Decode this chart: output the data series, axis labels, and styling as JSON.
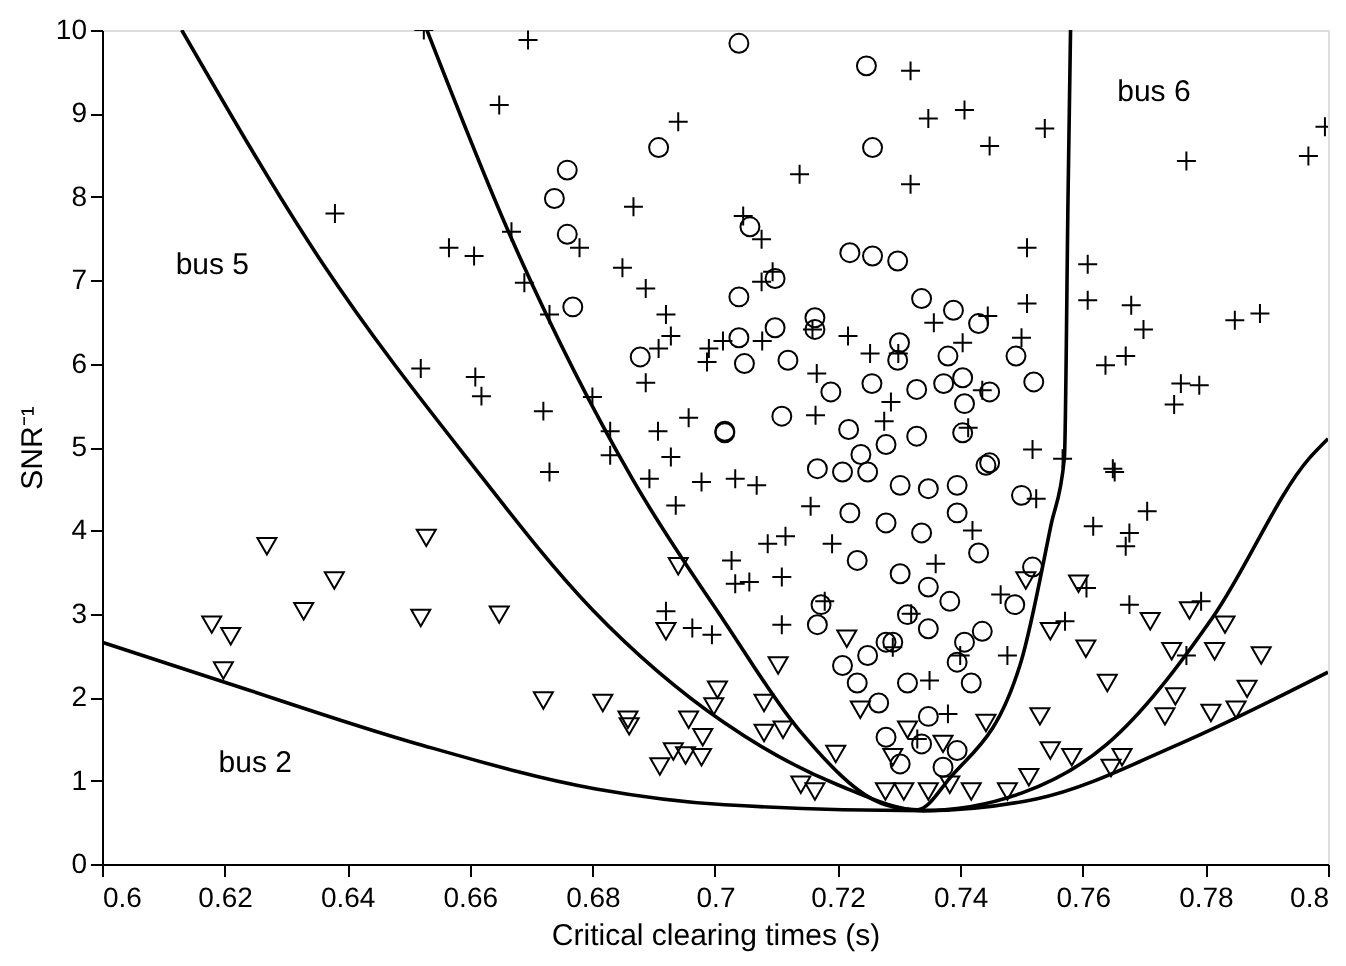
{
  "chart_data": {
    "type": "scatter",
    "xlabel": "Critical clearing times (s)",
    "ylabel": "SNR⁻¹",
    "xlim": [
      0.6,
      0.8
    ],
    "ylim": [
      0,
      10
    ],
    "xticks": [
      0.6,
      0.62,
      0.64,
      0.66,
      0.68,
      0.7,
      0.72,
      0.74,
      0.76,
      0.78,
      0.8
    ],
    "yticks": [
      0,
      1,
      2,
      3,
      4,
      5,
      6,
      7,
      8,
      9,
      10
    ],
    "grid": false,
    "annotations": [
      "bus 2",
      "bus 5",
      "bus 6"
    ],
    "series": [
      {
        "marker": "circle",
        "color": "#000000",
        "x": [
          0.6759,
          0.6738,
          0.6759,
          0.6768,
          0.6908,
          0.6878,
          0.7016,
          0.7039,
          0.7247,
          0.7257,
          0.7057,
          0.722,
          0.7257,
          0.7298,
          0.7098,
          0.7039,
          0.7337,
          0.7389,
          0.743,
          0.7163,
          0.7098,
          0.7039,
          0.7048,
          0.7119,
          0.7163,
          0.7301,
          0.7298,
          0.738,
          0.7404,
          0.7491,
          0.752,
          0.7189,
          0.7256,
          0.7329,
          0.7448,
          0.7373,
          0.7407,
          0.7016,
          0.7109,
          0.7218,
          0.7279,
          0.7404,
          0.7329,
          0.7448,
          0.7238,
          0.7167,
          0.7208,
          0.7249,
          0.7302,
          0.7348,
          0.7395,
          0.7442,
          0.75,
          0.722,
          0.7279,
          0.7337,
          0.7395,
          0.743,
          0.7348,
          0.7232,
          0.7302,
          0.7518,
          0.7489,
          0.7173,
          0.7167,
          0.7208,
          0.7249,
          0.729,
          0.7348,
          0.7395,
          0.7418,
          0.7314,
          0.7267,
          0.7348,
          0.7279,
          0.7337,
          0.7395,
          0.7302,
          0.7372,
          0.7279,
          0.7314,
          0.7383,
          0.7436,
          0.7232,
          0.7407
        ],
        "values": [
          8.32,
          7.98,
          7.55,
          6.68,
          8.59,
          6.08,
          5.19,
          9.84,
          9.57,
          8.59,
          7.64,
          7.33,
          7.29,
          7.23,
          7.02,
          6.8,
          6.78,
          6.64,
          6.48,
          6.55,
          6.43,
          6.31,
          6.0,
          6.04,
          6.41,
          6.25,
          6.04,
          6.09,
          5.83,
          6.09,
          5.78,
          5.66,
          5.76,
          5.69,
          5.66,
          5.76,
          5.52,
          5.17,
          5.37,
          5.21,
          5.03,
          5.17,
          5.13,
          4.81,
          4.91,
          4.74,
          4.7,
          4.7,
          4.54,
          4.5,
          4.54,
          4.78,
          4.42,
          4.21,
          4.09,
          3.97,
          4.21,
          3.73,
          3.32,
          3.64,
          3.48,
          3.56,
          3.11,
          3.11,
          2.87,
          2.38,
          2.5,
          2.66,
          2.82,
          2.42,
          2.17,
          2.17,
          1.93,
          1.77,
          1.52,
          1.44,
          1.36,
          1.2,
          1.16,
          2.66,
          2.99,
          3.15,
          2.79,
          2.17,
          2.66
        ]
      },
      {
        "marker": "cross",
        "color": "#000000",
        "x": [
          0.6525,
          0.6695,
          0.6648,
          0.694,
          0.638,
          0.6566,
          0.6607,
          0.6668,
          0.6689,
          0.673,
          0.6779,
          0.6867,
          0.6849,
          0.6887,
          0.692,
          0.6928,
          0.652,
          0.6609,
          0.6619,
          0.672,
          0.68,
          0.6829,
          0.6829,
          0.6907,
          0.6928,
          0.6887,
          0.6908,
          0.6957,
          0.699,
          0.6987,
          0.673,
          0.7319,
          0.7348,
          0.7407,
          0.7538,
          0.7448,
          0.7138,
          0.7319,
          0.7995,
          0.7968,
          0.7769,
          0.7046,
          0.7076,
          0.7094,
          0.7076,
          0.7509,
          0.7509,
          0.7608,
          0.7608,
          0.7679,
          0.7699,
          0.7848,
          0.7889,
          0.7637,
          0.767,
          0.776,
          0.779,
          0.7749,
          0.7013,
          0.7077,
          0.7159,
          0.7217,
          0.7357,
          0.7404,
          0.7445,
          0.7253,
          0.7299,
          0.75,
          0.7166,
          0.7164,
          0.7287,
          0.7276,
          0.7413,
          0.7436,
          0.7518,
          0.7567,
          0.7649,
          0.7033,
          0.7068,
          0.7156,
          0.7191,
          0.7086,
          0.7115,
          0.7027,
          0.7033,
          0.7056,
          0.7109,
          0.7109,
          0.7179,
          0.7652,
          0.7524,
          0.7617,
          0.7676,
          0.7705,
          0.767,
          0.7606,
          0.7676,
          0.7793,
          0.7769,
          0.7477,
          0.7571,
          0.7466,
          0.6893,
          0.6936,
          0.6978,
          0.692,
          0.6963,
          0.6995,
          0.732,
          0.735,
          0.738,
          0.733,
          0.74,
          0.736,
          0.742,
          0.729
        ],
        "values": [
          10.0,
          9.88,
          9.1,
          8.9,
          7.8,
          7.39,
          7.29,
          7.58,
          6.97,
          6.59,
          7.39,
          7.88,
          7.15,
          6.9,
          6.59,
          6.33,
          5.94,
          5.84,
          5.61,
          5.43,
          5.6,
          5.19,
          4.9,
          5.19,
          4.88,
          5.77,
          6.18,
          5.35,
          6.18,
          6.02,
          4.7,
          9.51,
          8.94,
          9.04,
          8.82,
          8.61,
          8.27,
          8.15,
          8.84,
          8.49,
          8.43,
          7.77,
          7.49,
          7.1,
          6.98,
          7.39,
          6.72,
          7.19,
          6.76,
          6.7,
          6.41,
          6.52,
          6.6,
          5.98,
          6.09,
          5.76,
          5.74,
          5.51,
          6.27,
          6.27,
          6.41,
          6.33,
          6.49,
          6.25,
          6.57,
          6.12,
          6.12,
          6.31,
          5.88,
          5.38,
          5.54,
          5.31,
          5.23,
          5.68,
          4.97,
          4.86,
          4.74,
          4.62,
          4.54,
          4.29,
          3.84,
          3.84,
          3.93,
          3.64,
          3.36,
          3.38,
          3.44,
          2.87,
          3.15,
          4.7,
          4.38,
          4.05,
          3.97,
          4.23,
          3.81,
          3.31,
          3.11,
          3.15,
          2.5,
          2.5,
          2.91,
          3.23,
          4.62,
          4.3,
          4.58,
          3.03,
          2.83,
          2.75,
          3.0,
          2.2,
          1.8,
          1.5,
          2.5,
          3.6,
          4.0,
          2.6
        ]
      },
      {
        "marker": "triangle",
        "color": "#000000",
        "x": [
          0.6179,
          0.621,
          0.6198,
          0.6269,
          0.6329,
          0.6379,
          0.6529,
          0.652,
          0.6648,
          0.672,
          0.6817,
          0.6858,
          0.686,
          0.692,
          0.694,
          0.691,
          0.6932,
          0.6952,
          0.6978,
          0.698,
          0.6957,
          0.6998,
          0.7004,
          0.7103,
          0.708,
          0.7111,
          0.708,
          0.714,
          0.7163,
          0.7197,
          0.7215,
          0.7237,
          0.7278,
          0.7308,
          0.7348,
          0.7383,
          0.7418,
          0.7477,
          0.7512,
          0.7547,
          0.753,
          0.7507,
          0.7547,
          0.7582,
          0.7605,
          0.7593,
          0.764,
          0.7646,
          0.771,
          0.7774,
          0.7745,
          0.7815,
          0.7734,
          0.7751,
          0.7809,
          0.7868,
          0.7832,
          0.7891,
          0.785,
          0.7664,
          0.7372,
          0.7314,
          0.7442,
          0.729
        ],
        "values": [
          2.87,
          2.73,
          2.32,
          3.81,
          3.03,
          3.4,
          3.91,
          2.95,
          2.99,
          1.96,
          1.93,
          1.73,
          1.65,
          2.79,
          3.57,
          1.17,
          1.35,
          1.3,
          1.28,
          1.52,
          1.73,
          1.89,
          2.09,
          2.38,
          1.93,
          1.61,
          1.57,
          0.95,
          0.87,
          1.32,
          2.7,
          1.85,
          0.87,
          0.87,
          0.87,
          0.95,
          0.87,
          0.87,
          1.04,
          1.36,
          1.77,
          3.4,
          2.79,
          1.28,
          2.58,
          3.36,
          2.17,
          1.15,
          2.91,
          3.04,
          2.55,
          2.55,
          1.77,
          2.01,
          1.81,
          2.1,
          2.87,
          2.5,
          1.85,
          1.28,
          1.44,
          1.61,
          1.69,
          1.28
        ]
      },
      {
        "type": "line",
        "marker": "none",
        "line_style": "solid",
        "color": "#000000",
        "x": [
          0.6,
          0.62,
          0.6515,
          0.6806,
          0.7016,
          0.734,
          0.7524,
          0.7758,
          0.8
        ],
        "values": [
          2.66,
          2.18,
          1.44,
          0.9,
          0.71,
          0.64,
          0.78,
          1.44,
          2.3
        ]
      },
      {
        "type": "line",
        "marker": "none",
        "line_style": "solid",
        "color": "#000000",
        "x": [
          0.613,
          0.636,
          0.6595,
          0.68,
          0.7016,
          0.72,
          0.734,
          0.75,
          0.764,
          0.7814,
          0.797,
          0.8
        ],
        "values": [
          10,
          7.2,
          4.87,
          3.05,
          1.69,
          0.95,
          0.64,
          0.85,
          1.44,
          2.98,
          4.87,
          5.1
        ]
      },
      {
        "type": "line",
        "marker": "none",
        "line_style": "solid",
        "color": "#000000",
        "x": [
          0.653,
          0.6665,
          0.6865,
          0.7016,
          0.7138,
          0.7278,
          0.733,
          0.7383,
          0.7499,
          0.7548,
          0.757,
          0.7576,
          0.758
        ],
        "values": [
          10,
          7.55,
          4.62,
          2.9,
          1.6,
          0.71,
          0.65,
          1.03,
          2.42,
          4.06,
          4.87,
          8.04,
          10
        ]
      }
    ]
  }
}
